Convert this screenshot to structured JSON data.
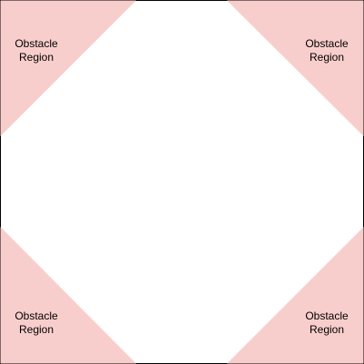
{
  "colors": {
    "background": "#ffffff",
    "boundary": "#000000",
    "obstacle_fill": "#f8cecc"
  },
  "regions": {
    "top_left": {
      "line1": "Obstacle",
      "line2": "Region"
    },
    "top_right": {
      "line1": "Obstacle",
      "line2": "Region"
    },
    "bottom_left": {
      "line1": "Obstacle",
      "line2": "Region"
    },
    "bottom_right": {
      "line1": "Obstacle",
      "line2": "Region"
    }
  }
}
